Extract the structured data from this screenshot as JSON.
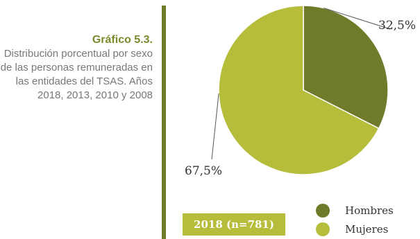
{
  "caption": {
    "title": "Gráfico 5.3.",
    "body": "Distribución porcentual por sexo de las personas remuneradas en las entidades del TSAS. Años 2018, 2013, 2010 y 2008"
  },
  "chart_data": {
    "type": "pie",
    "slices": [
      {
        "name": "Hombres",
        "value": 32.5,
        "label": "32,5%",
        "color": "#6f7a2a"
      },
      {
        "name": "Mujeres",
        "value": 67.5,
        "label": "67,5%",
        "color": "#b5bd3a"
      }
    ],
    "year_tag": "2018 (n=781)",
    "legend_position": "bottom-right"
  }
}
